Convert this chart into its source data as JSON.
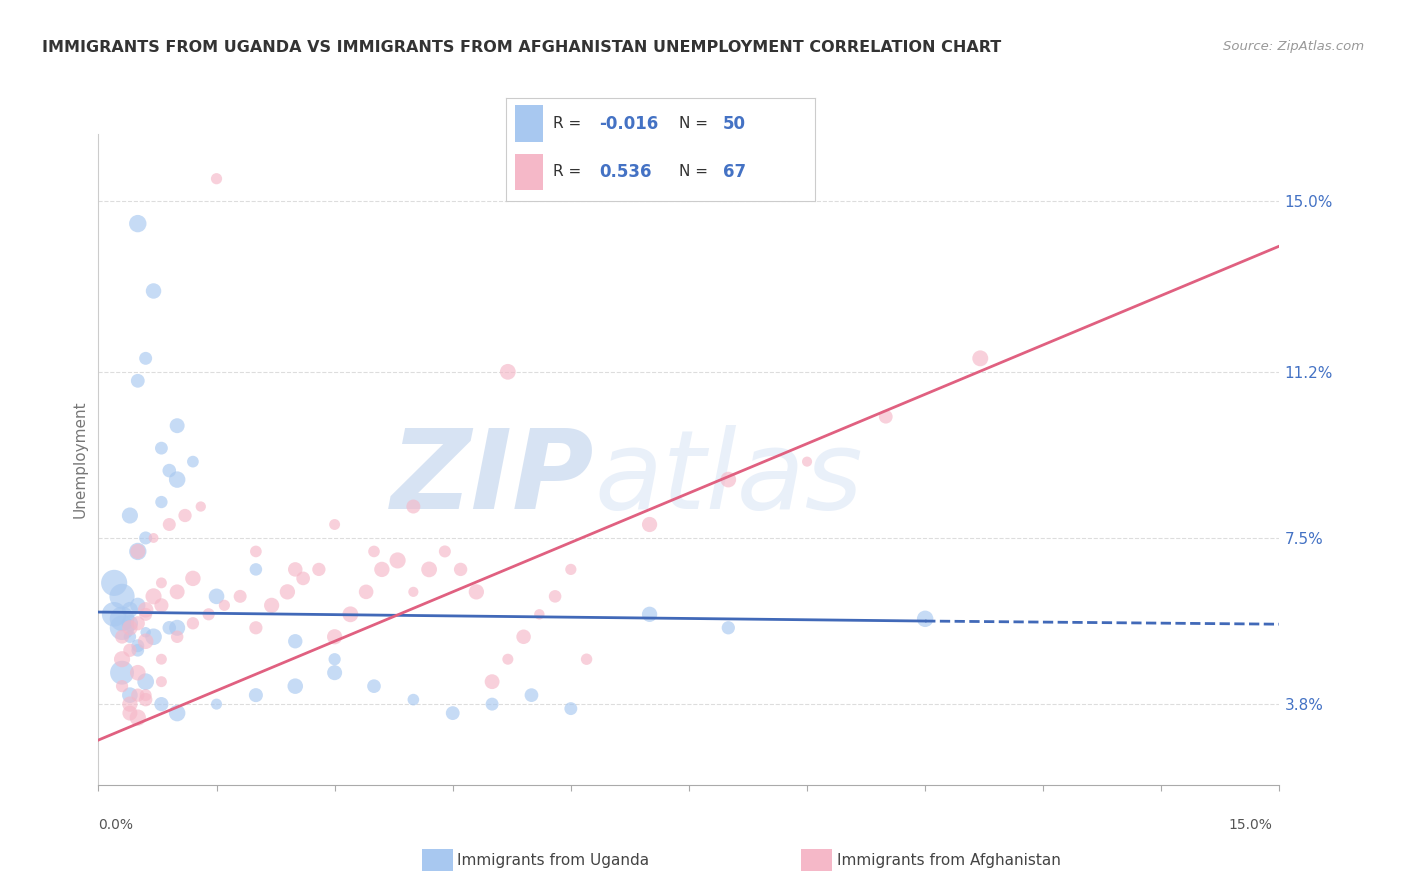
{
  "title": "IMMIGRANTS FROM UGANDA VS IMMIGRANTS FROM AFGHANISTAN UNEMPLOYMENT CORRELATION CHART",
  "source": "Source: ZipAtlas.com",
  "ylabel": "Unemployment",
  "y_ticks_right": [
    3.8,
    7.5,
    11.2,
    15.0
  ],
  "y_tick_labels_right": [
    "3.8%",
    "7.5%",
    "11.2%",
    "15.0%"
  ],
  "xlim": [
    0.0,
    15.0
  ],
  "ylim": [
    2.0,
    16.5
  ],
  "uganda_color": "#a8c8f0",
  "afghanistan_color": "#f5b8c8",
  "uganda_line_color": "#4169b8",
  "afghanistan_line_color": "#e06080",
  "legend_label_uganda": "Immigrants from Uganda",
  "legend_label_afghanistan": "Immigrants from Afghanistan",
  "R_uganda": -0.016,
  "N_uganda": 50,
  "R_afghanistan": 0.536,
  "N_afghanistan": 67,
  "watermark_zip": "ZIP",
  "watermark_atlas": "atlas",
  "background_color": "#ffffff",
  "grid_color": "#dddddd",
  "uganda_line_x0": 0.0,
  "uganda_line_y0": 5.85,
  "uganda_line_x1": 10.5,
  "uganda_line_y1": 5.65,
  "uganda_dash_x0": 10.5,
  "uganda_dash_y0": 5.65,
  "uganda_dash_x1": 15.0,
  "uganda_dash_y1": 5.58,
  "afg_line_x0": 0.0,
  "afg_line_y0": 3.0,
  "afg_line_x1": 15.0,
  "afg_line_y1": 14.0,
  "uganda_scatter": [
    [
      0.2,
      5.8
    ],
    [
      0.3,
      5.7
    ],
    [
      0.4,
      5.9
    ],
    [
      0.5,
      6.0
    ],
    [
      0.3,
      5.5
    ],
    [
      0.4,
      5.3
    ],
    [
      0.5,
      5.1
    ],
    [
      0.6,
      5.4
    ],
    [
      0.4,
      5.6
    ],
    [
      0.3,
      6.2
    ],
    [
      0.2,
      6.5
    ],
    [
      0.5,
      7.2
    ],
    [
      0.6,
      7.5
    ],
    [
      0.4,
      8.0
    ],
    [
      0.8,
      8.3
    ],
    [
      1.0,
      8.8
    ],
    [
      1.2,
      9.2
    ],
    [
      0.9,
      5.5
    ],
    [
      0.7,
      5.3
    ],
    [
      0.5,
      5.0
    ],
    [
      0.3,
      4.5
    ],
    [
      0.6,
      4.3
    ],
    [
      0.4,
      4.0
    ],
    [
      0.8,
      3.8
    ],
    [
      1.0,
      3.6
    ],
    [
      1.5,
      3.8
    ],
    [
      2.0,
      4.0
    ],
    [
      2.5,
      4.2
    ],
    [
      3.0,
      4.5
    ],
    [
      3.5,
      4.2
    ],
    [
      4.0,
      3.9
    ],
    [
      4.5,
      3.6
    ],
    [
      5.0,
      3.8
    ],
    [
      5.5,
      4.0
    ],
    [
      6.0,
      3.7
    ],
    [
      1.0,
      5.5
    ],
    [
      1.5,
      6.2
    ],
    [
      2.0,
      6.8
    ],
    [
      2.5,
      5.2
    ],
    [
      3.0,
      4.8
    ],
    [
      0.5,
      11.0
    ],
    [
      0.8,
      9.5
    ],
    [
      1.0,
      10.0
    ],
    [
      0.6,
      11.5
    ],
    [
      0.9,
      9.0
    ],
    [
      7.0,
      5.8
    ],
    [
      8.0,
      5.5
    ],
    [
      10.5,
      5.7
    ],
    [
      0.5,
      14.5
    ],
    [
      0.7,
      13.0
    ]
  ],
  "afghanistan_scatter": [
    [
      0.3,
      4.8
    ],
    [
      0.5,
      4.5
    ],
    [
      0.4,
      5.0
    ],
    [
      0.6,
      5.2
    ],
    [
      0.8,
      4.8
    ],
    [
      0.3,
      4.2
    ],
    [
      0.5,
      4.0
    ],
    [
      0.4,
      3.6
    ],
    [
      0.6,
      3.9
    ],
    [
      0.8,
      4.3
    ],
    [
      1.0,
      5.3
    ],
    [
      1.2,
      5.6
    ],
    [
      1.4,
      5.8
    ],
    [
      1.6,
      6.0
    ],
    [
      1.8,
      6.2
    ],
    [
      2.0,
      5.5
    ],
    [
      2.2,
      6.0
    ],
    [
      2.4,
      6.3
    ],
    [
      2.6,
      6.6
    ],
    [
      2.8,
      6.8
    ],
    [
      3.0,
      5.3
    ],
    [
      3.2,
      5.8
    ],
    [
      3.4,
      6.3
    ],
    [
      3.6,
      6.8
    ],
    [
      3.8,
      7.0
    ],
    [
      4.0,
      6.3
    ],
    [
      4.2,
      6.8
    ],
    [
      4.4,
      7.2
    ],
    [
      4.6,
      6.8
    ],
    [
      4.8,
      6.3
    ],
    [
      5.0,
      4.3
    ],
    [
      5.2,
      4.8
    ],
    [
      5.4,
      5.3
    ],
    [
      5.6,
      5.8
    ],
    [
      5.8,
      6.2
    ],
    [
      0.4,
      5.5
    ],
    [
      0.6,
      5.8
    ],
    [
      0.8,
      6.0
    ],
    [
      1.0,
      6.3
    ],
    [
      1.2,
      6.6
    ],
    [
      0.5,
      7.2
    ],
    [
      0.7,
      7.5
    ],
    [
      0.9,
      7.8
    ],
    [
      1.1,
      8.0
    ],
    [
      1.3,
      8.2
    ],
    [
      0.3,
      5.3
    ],
    [
      0.5,
      5.6
    ],
    [
      0.6,
      5.9
    ],
    [
      0.7,
      6.2
    ],
    [
      0.8,
      6.5
    ],
    [
      2.0,
      7.2
    ],
    [
      2.5,
      6.8
    ],
    [
      3.0,
      7.8
    ],
    [
      3.5,
      7.2
    ],
    [
      4.0,
      8.2
    ],
    [
      6.0,
      6.8
    ],
    [
      7.0,
      7.8
    ],
    [
      8.0,
      8.8
    ],
    [
      9.0,
      9.2
    ],
    [
      10.0,
      10.2
    ],
    [
      0.4,
      3.8
    ],
    [
      0.5,
      3.5
    ],
    [
      0.6,
      4.0
    ],
    [
      1.5,
      15.5
    ],
    [
      5.2,
      11.2
    ],
    [
      11.2,
      11.5
    ],
    [
      6.2,
      4.8
    ]
  ]
}
